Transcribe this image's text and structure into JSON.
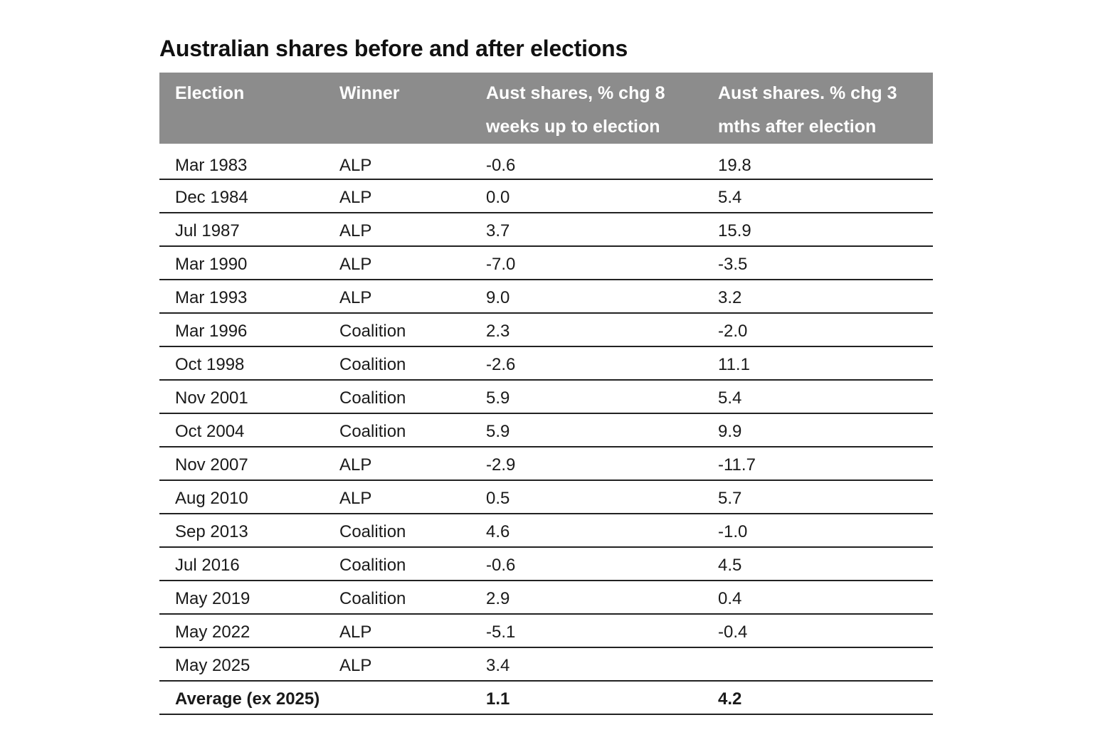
{
  "chart_data": {
    "type": "table",
    "title": "Australian shares before and after elections",
    "columns": [
      "Election",
      "Winner",
      "Aust shares, % chg  8 weeks up to election",
      "Aust shares. % chg 3 mths after election"
    ],
    "rows": [
      [
        "Mar 1983",
        "ALP",
        "-0.6",
        "19.8"
      ],
      [
        "Dec 1984",
        "ALP",
        "0.0",
        "5.4"
      ],
      [
        "Jul 1987",
        "ALP",
        "3.7",
        "15.9"
      ],
      [
        "Mar 1990",
        "ALP",
        "-7.0",
        "-3.5"
      ],
      [
        "Mar 1993",
        "ALP",
        "9.0",
        "3.2"
      ],
      [
        "Mar 1996",
        "Coalition",
        "2.3",
        "-2.0"
      ],
      [
        "Oct 1998",
        "Coalition",
        "-2.6",
        "11.1"
      ],
      [
        "Nov 2001",
        "Coalition",
        "5.9",
        "5.4"
      ],
      [
        "Oct 2004",
        "Coalition",
        "5.9",
        "9.9"
      ],
      [
        "Nov 2007",
        "ALP",
        "-2.9",
        "-11.7"
      ],
      [
        "Aug 2010",
        "ALP",
        "0.5",
        "5.7"
      ],
      [
        "Sep 2013",
        "Coalition",
        "4.6",
        "-1.0"
      ],
      [
        "Jul 2016",
        "Coalition",
        "-0.6",
        "4.5"
      ],
      [
        "May 2019",
        "Coalition",
        "2.9",
        "0.4"
      ],
      [
        "May 2022",
        "ALP",
        "-5.1",
        "-0.4"
      ],
      [
        "May 2025",
        "ALP",
        "3.4",
        ""
      ]
    ],
    "average_row": [
      "Average (ex 2025)",
      "",
      "1.1",
      "4.2"
    ],
    "colors": {
      "header_background": "#8c8c8c",
      "header_text": "#ffffff",
      "rule": "#222222"
    }
  }
}
